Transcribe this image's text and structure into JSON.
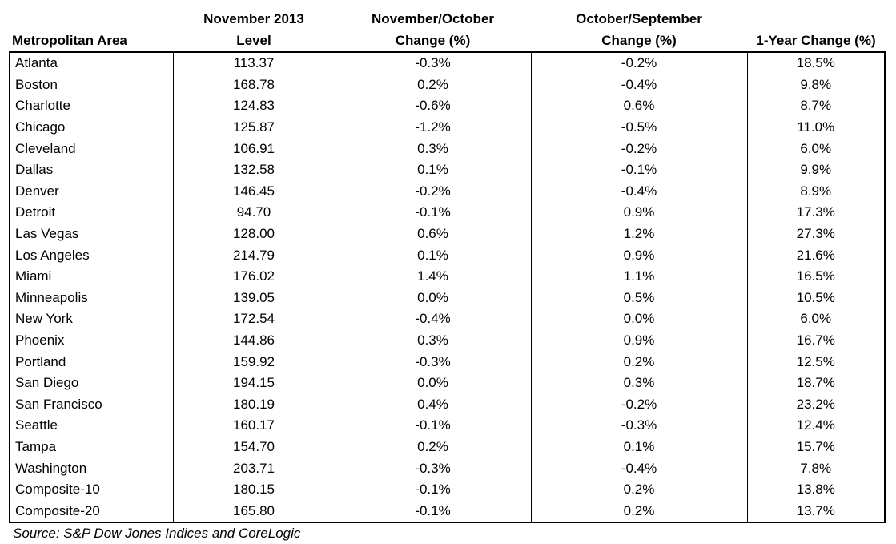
{
  "chart_data": {
    "type": "table",
    "columns": [
      {
        "line1": "",
        "line2": "Metropolitan Area"
      },
      {
        "line1": "November 2013",
        "line2": "Level"
      },
      {
        "line1": "November/October",
        "line2": "Change (%)"
      },
      {
        "line1": "October/September",
        "line2": "Change (%)"
      },
      {
        "line1": "",
        "line2": "1-Year Change (%)"
      }
    ],
    "rows": [
      [
        "Atlanta",
        "113.37",
        "-0.3%",
        "-0.2%",
        "18.5%"
      ],
      [
        "Boston",
        "168.78",
        "0.2%",
        "-0.4%",
        "9.8%"
      ],
      [
        "Charlotte",
        "124.83",
        "-0.6%",
        "0.6%",
        "8.7%"
      ],
      [
        "Chicago",
        "125.87",
        "-1.2%",
        "-0.5%",
        "11.0%"
      ],
      [
        "Cleveland",
        "106.91",
        "0.3%",
        "-0.2%",
        "6.0%"
      ],
      [
        "Dallas",
        "132.58",
        "0.1%",
        "-0.1%",
        "9.9%"
      ],
      [
        "Denver",
        "146.45",
        "-0.2%",
        "-0.4%",
        "8.9%"
      ],
      [
        "Detroit",
        "94.70",
        "-0.1%",
        "0.9%",
        "17.3%"
      ],
      [
        "Las Vegas",
        "128.00",
        "0.6%",
        "1.2%",
        "27.3%"
      ],
      [
        "Los Angeles",
        "214.79",
        "0.1%",
        "0.9%",
        "21.6%"
      ],
      [
        "Miami",
        "176.02",
        "1.4%",
        "1.1%",
        "16.5%"
      ],
      [
        "Minneapolis",
        "139.05",
        "0.0%",
        "0.5%",
        "10.5%"
      ],
      [
        "New York",
        "172.54",
        "-0.4%",
        "0.0%",
        "6.0%"
      ],
      [
        "Phoenix",
        "144.86",
        "0.3%",
        "0.9%",
        "16.7%"
      ],
      [
        "Portland",
        "159.92",
        "-0.3%",
        "0.2%",
        "12.5%"
      ],
      [
        "San Diego",
        "194.15",
        "0.0%",
        "0.3%",
        "18.7%"
      ],
      [
        "San Francisco",
        "180.19",
        "0.4%",
        "-0.2%",
        "23.2%"
      ],
      [
        "Seattle",
        "160.17",
        "-0.1%",
        "-0.3%",
        "12.4%"
      ],
      [
        "Tampa",
        "154.70",
        "0.2%",
        "0.1%",
        "15.7%"
      ],
      [
        "Washington",
        "203.71",
        "-0.3%",
        "-0.4%",
        "7.8%"
      ],
      [
        "Composite-10",
        "180.15",
        "-0.1%",
        "0.2%",
        "13.8%"
      ],
      [
        "Composite-20",
        "165.80",
        "-0.1%",
        "0.2%",
        "13.7%"
      ]
    ],
    "source": "Source: S&P Dow Jones Indices and CoreLogic"
  }
}
